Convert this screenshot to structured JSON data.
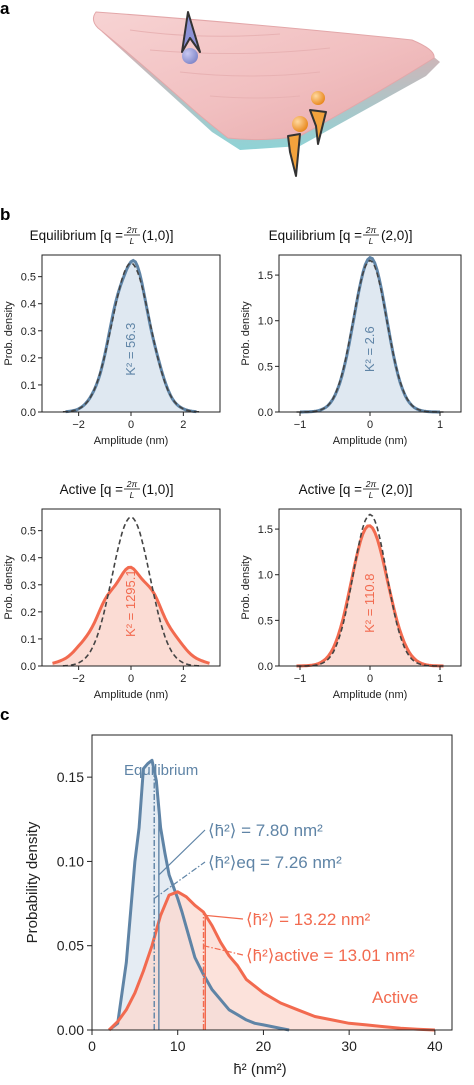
{
  "panel_letters": {
    "a": "a",
    "b": "b",
    "c": "c"
  },
  "colors": {
    "equilibrium": "#5f84a6",
    "active": "#f26a4f",
    "gaussian": "#444444",
    "eq_fill": "#dce6ef",
    "act_fill": "#fbd8cf",
    "membrane": "#f3c4c4"
  },
  "chart_data": [
    {
      "type": "area",
      "title": "Equilibrium [q = 2π/L (1,0)]",
      "title_prefix": "Equilibrium [q = ",
      "title_suffix": " (1,0)]",
      "fraction_num": "2π",
      "fraction_den": "L",
      "xlabel": "Amplitude (nm)",
      "ylabel": "Prob. density",
      "xlim": [
        -3.4,
        3.4
      ],
      "ylim": [
        0,
        0.58
      ],
      "xticks": [
        -2,
        0,
        2
      ],
      "yticks": [
        0.0,
        0.1,
        0.2,
        0.3,
        0.4,
        0.5
      ],
      "annotation": "K² = 56.3",
      "series": [
        {
          "kind": "measured",
          "color": "#5f84a6",
          "sigma": 0.72,
          "peak": 0.555,
          "range": [
            -2.5,
            2.5
          ]
        },
        {
          "kind": "gaussian",
          "color": "#444444",
          "sigma": 0.72,
          "peak": 0.55,
          "range": [
            -2.6,
            2.6
          ]
        }
      ]
    },
    {
      "type": "area",
      "title": "Equilibrium [q = 2π/L (2,0)]",
      "title_prefix": "Equilibrium [q = ",
      "title_suffix": " (2,0)]",
      "fraction_num": "2π",
      "fraction_den": "L",
      "xlabel": "Amplitude (nm)",
      "ylabel": "Prob. density",
      "xlim": [
        -1.3,
        1.3
      ],
      "ylim": [
        0,
        1.72
      ],
      "xticks": [
        -1,
        0,
        1
      ],
      "yticks": [
        0.0,
        0.5,
        1.0,
        1.5
      ],
      "annotation": "K² = 2.6",
      "series": [
        {
          "kind": "measured",
          "color": "#5f84a6",
          "sigma": 0.24,
          "peak": 1.65,
          "range": [
            -1.0,
            1.0
          ]
        },
        {
          "kind": "gaussian",
          "color": "#444444",
          "sigma": 0.24,
          "peak": 1.66,
          "range": [
            -1.05,
            1.05
          ]
        }
      ]
    },
    {
      "type": "area",
      "title": "Active [q = 2π/L (1,0)]",
      "title_prefix": "Active [q = ",
      "title_suffix": " (1,0)]",
      "fraction_num": "2π",
      "fraction_den": "L",
      "xlabel": "Amplitude (nm)",
      "ylabel": "Prob. density",
      "xlim": [
        -3.4,
        3.4
      ],
      "ylim": [
        0,
        0.58
      ],
      "xticks": [
        -2,
        0,
        2
      ],
      "yticks": [
        0.0,
        0.1,
        0.2,
        0.3,
        0.4,
        0.5
      ],
      "annotation": "K² = 1295.1",
      "series": [
        {
          "kind": "measured",
          "color": "#f26a4f",
          "sigma": 1.12,
          "peak": 0.355,
          "range": [
            -3.0,
            3.0
          ]
        },
        {
          "kind": "gaussian",
          "color": "#444444",
          "sigma": 0.72,
          "peak": 0.55,
          "range": [
            -2.6,
            2.6
          ]
        }
      ]
    },
    {
      "type": "area",
      "title": "Active [q = 2π/L (2,0)]",
      "title_prefix": "Active [q = ",
      "title_suffix": " (2,0)]",
      "fraction_num": "2π",
      "fraction_den": "L",
      "xlabel": "Amplitude (nm)",
      "ylabel": "Prob. density",
      "xlim": [
        -1.3,
        1.3
      ],
      "ylim": [
        0,
        1.72
      ],
      "xticks": [
        -1,
        0,
        1
      ],
      "yticks": [
        0.0,
        0.5,
        1.0,
        1.5
      ],
      "annotation": "K² = 110.8",
      "series": [
        {
          "kind": "measured",
          "color": "#f26a4f",
          "sigma": 0.26,
          "peak": 1.53,
          "range": [
            -1.05,
            1.05
          ]
        },
        {
          "kind": "gaussian",
          "color": "#444444",
          "sigma": 0.24,
          "peak": 1.66,
          "range": [
            -1.05,
            1.05
          ]
        }
      ]
    },
    {
      "type": "area",
      "xlabel": "h̄² (nm²)",
      "ylabel": "Probability density",
      "xlim": [
        0,
        42
      ],
      "ylim": [
        0,
        0.175
      ],
      "xticks": [
        0,
        10,
        20,
        30,
        40
      ],
      "yticks": [
        0.0,
        0.05,
        0.1,
        0.15
      ],
      "ytick_labels": [
        "0.00",
        "0.05",
        "0.10",
        "0.15"
      ],
      "series": [
        {
          "name": "Equilibrium",
          "color": "#5f84a6",
          "x": [
            2,
            3,
            4,
            5,
            5.5,
            6,
            6.5,
            7,
            7.5,
            8,
            8.5,
            9,
            9.5,
            10,
            10.5,
            11,
            11.5,
            12,
            13,
            14,
            15,
            16,
            17,
            18,
            19,
            20,
            21,
            22,
            23
          ],
          "values": [
            0,
            0.004,
            0.04,
            0.1,
            0.12,
            0.155,
            0.158,
            0.16,
            0.148,
            0.12,
            0.105,
            0.092,
            0.085,
            0.078,
            0.07,
            0.061,
            0.052,
            0.043,
            0.033,
            0.024,
            0.018,
            0.012,
            0.009,
            0.006,
            0.004,
            0.003,
            0.002,
            0.001,
            0.0
          ]
        },
        {
          "name": "Active",
          "color": "#f26a4f",
          "x": [
            2,
            3,
            4,
            5,
            6,
            7,
            8,
            9,
            10,
            11,
            12,
            13,
            14,
            15,
            16,
            17,
            18,
            19,
            20,
            22,
            24,
            26,
            28,
            30,
            32,
            34,
            36,
            38,
            40
          ],
          "values": [
            0,
            0.005,
            0.012,
            0.022,
            0.035,
            0.05,
            0.068,
            0.08,
            0.082,
            0.079,
            0.074,
            0.07,
            0.062,
            0.052,
            0.044,
            0.038,
            0.03,
            0.026,
            0.022,
            0.016,
            0.012,
            0.008,
            0.006,
            0.004,
            0.003,
            0.002,
            0.001,
            0.0005,
            0.0
          ]
        }
      ],
      "vlines": [
        {
          "x": 7.8,
          "color": "#5f84a6",
          "style": "solid"
        },
        {
          "x": 7.26,
          "color": "#5f84a6",
          "style": "dashdot"
        },
        {
          "x": 13.22,
          "color": "#f26a4f",
          "style": "solid"
        },
        {
          "x": 13.01,
          "color": "#f26a4f",
          "style": "dashdot"
        }
      ],
      "labels": {
        "equilibrium": "Equilibrium",
        "active": "Active",
        "eq_mean": "⟨h̄²⟩ = 7.80 nm²",
        "eq_mean_eq": "⟨h̄²⟩eq = 7.26 nm²",
        "act_mean": "⟨h̄²⟩ = 13.22 nm²",
        "act_mean_active": "⟨h̄²⟩active = 13.01 nm²"
      }
    }
  ]
}
